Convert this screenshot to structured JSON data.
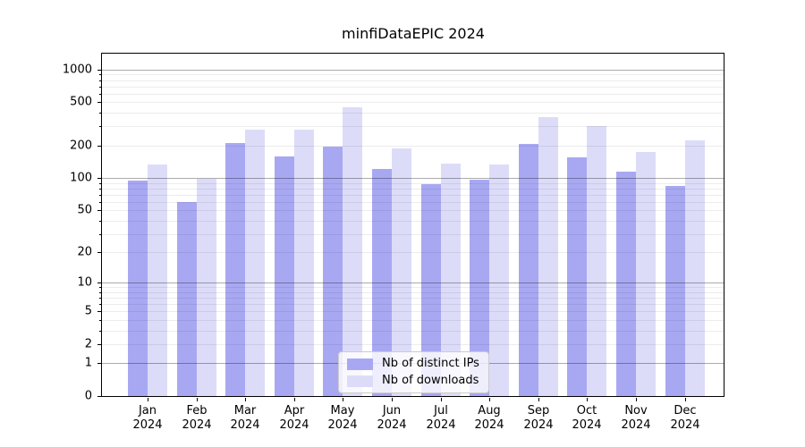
{
  "title": "minfiDataEPIC 2024",
  "colors": {
    "ips": "#a8a8f2",
    "downloads": "#dcdcf9"
  },
  "legend": {
    "items": [
      {
        "label": "Nb of distinct IPs",
        "series": "ips"
      },
      {
        "label": "Nb of downloads",
        "series": "downloads"
      }
    ]
  },
  "chart_data": {
    "type": "bar",
    "title": "minfiDataEPIC 2024",
    "categories": [
      "Jan",
      "Feb",
      "Mar",
      "Apr",
      "May",
      "Jun",
      "Jul",
      "Aug",
      "Sep",
      "Oct",
      "Nov",
      "Dec"
    ],
    "x_sublabel": "2024",
    "series": [
      {
        "name": "Nb of distinct IPs",
        "color": "#a8a8f2",
        "values": [
          95,
          60,
          210,
          158,
          195,
          121,
          88,
          97,
          206,
          155,
          115,
          84
        ]
      },
      {
        "name": "Nb of downloads",
        "color": "#dcdcf9",
        "values": [
          134,
          98,
          280,
          278,
          448,
          188,
          136,
          133,
          365,
          302,
          174,
          224
        ]
      }
    ],
    "yscale": "log1p",
    "ylim": [
      0,
      1460
    ],
    "y_ticks": [
      0,
      1,
      2,
      5,
      10,
      20,
      50,
      100,
      200,
      500,
      1000
    ],
    "y_minor_ticks": [
      3,
      4,
      6,
      7,
      8,
      9,
      30,
      40,
      60,
      70,
      80,
      90,
      300,
      400,
      600,
      700,
      800,
      900
    ],
    "grid": true,
    "legend_position": "lower center"
  }
}
